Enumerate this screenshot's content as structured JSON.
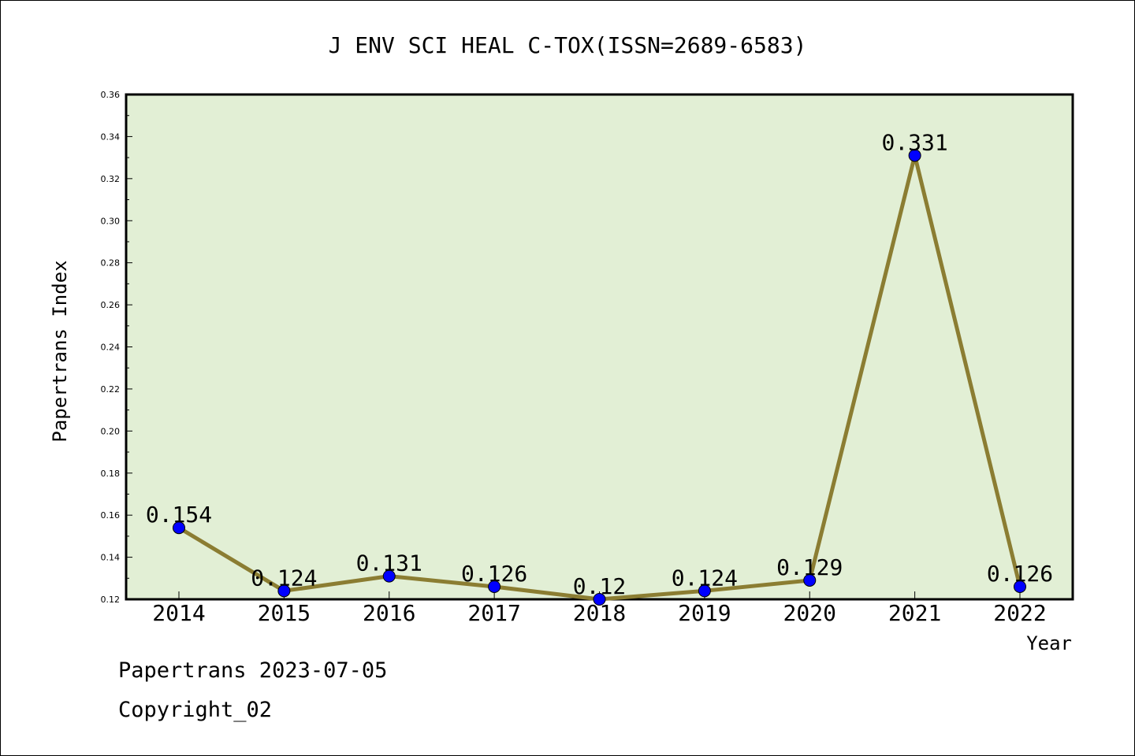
{
  "footer": {
    "date_line": "Papertrans 2023-07-05",
    "copyright": "Copyright_02"
  },
  "chart_data": {
    "type": "line",
    "title": "J ENV SCI HEAL C-TOX(ISSN=2689-6583)",
    "xlabel": "Year",
    "ylabel": "Papertrans Index",
    "categories": [
      "2014",
      "2015",
      "2016",
      "2017",
      "2018",
      "2019",
      "2020",
      "2021",
      "2022"
    ],
    "values": [
      0.154,
      0.124,
      0.131,
      0.126,
      0.12,
      0.124,
      0.129,
      0.331,
      0.126
    ],
    "data_labels": [
      "0.154",
      "0.124",
      "0.131",
      "0.126",
      "0.12",
      "0.124",
      "0.129",
      "0.331",
      "0.126"
    ],
    "ylim": [
      0.12,
      0.36
    ],
    "yticks": [
      "0.12",
      "0.14",
      "0.16",
      "0.18",
      "0.20",
      "0.22",
      "0.24",
      "0.26",
      "0.28",
      "0.30",
      "0.32",
      "0.34",
      "0.36"
    ],
    "grid": false,
    "colors": {
      "plot_background": "#e2efd5",
      "line": "#8b7d32",
      "marker": "#0000ff"
    }
  }
}
